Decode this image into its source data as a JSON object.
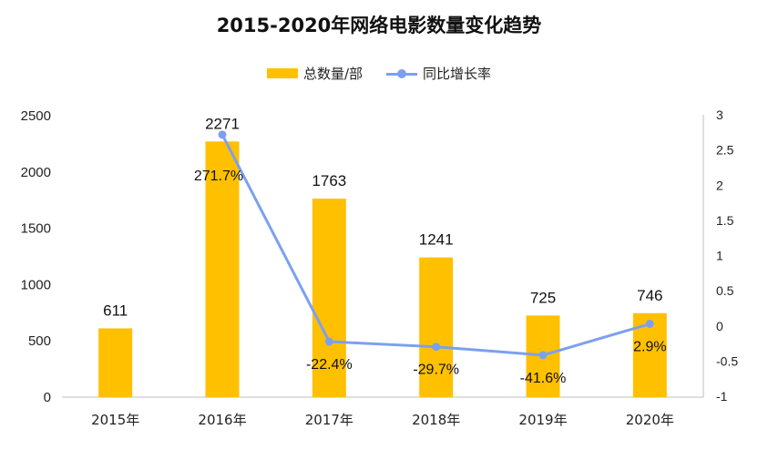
{
  "colors": {
    "bar": "#FFC000",
    "line": "#7CA0F0"
  },
  "chart_data": {
    "type": "bar",
    "title": "2015-2020年网络电影数量变化趋势",
    "categories": [
      "2015年",
      "2016年",
      "2017年",
      "2018年",
      "2019年",
      "2020年"
    ],
    "series": [
      {
        "name": "总数量/部",
        "type": "bar",
        "axis": "left",
        "values": [
          611,
          2271,
          1763,
          1241,
          725,
          746
        ]
      },
      {
        "name": "同比增长率",
        "type": "line",
        "axis": "right",
        "values": [
          null,
          2.717,
          -0.224,
          -0.297,
          -0.416,
          0.029
        ]
      }
    ],
    "bar_labels": [
      "611",
      "2271",
      "1763",
      "1241",
      "725",
      "746"
    ],
    "line_labels": [
      "",
      "271.7%",
      "-22.4%",
      "-29.7%",
      "-41.6%",
      "2.9%"
    ],
    "ylim_left": [
      0,
      2500
    ],
    "yticks_left": [
      "0",
      "500",
      "1000",
      "1500",
      "2000",
      "2500"
    ],
    "ylim_right": [
      -1,
      3
    ],
    "yticks_right": [
      "-1",
      "-0.5",
      "0",
      "0.5",
      "1",
      "1.5",
      "2",
      "2.5",
      "3"
    ],
    "legend_position": "top",
    "grid": false
  }
}
